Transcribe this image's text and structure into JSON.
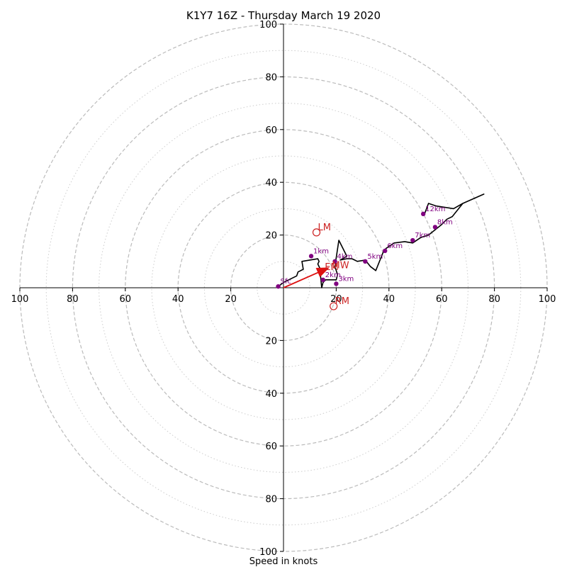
{
  "chart_data": {
    "type": "scatter",
    "title": "K1Y7 16Z - Thursday March 19 2020",
    "xlabel": "Speed in knots",
    "ylabel": "",
    "xlim": [
      -100,
      100
    ],
    "ylim": [
      -100,
      100
    ],
    "grid": true,
    "ticks": {
      "x_left": [
        "100",
        "80",
        "60",
        "40",
        "20"
      ],
      "x_right": [
        "20",
        "40",
        "60",
        "80",
        "100"
      ],
      "y_up": [
        "20",
        "40",
        "60",
        "80",
        "100"
      ],
      "y_down": [
        "20",
        "40",
        "60",
        "80",
        "100"
      ]
    },
    "rings_major": [
      20,
      40,
      60,
      80,
      100
    ],
    "rings_minor": [
      10,
      30,
      50,
      70,
      90
    ],
    "hodograph": {
      "x": [
        -2,
        0,
        2,
        5,
        5.5,
        7.5,
        7,
        13,
        13.5,
        13,
        14,
        14,
        14.5,
        15,
        16,
        20,
        20.5,
        19.5,
        21,
        24,
        21.5,
        24,
        26,
        27,
        28,
        31,
        33,
        35,
        38,
        39,
        42,
        46,
        49,
        52,
        55,
        57.5,
        60,
        62,
        64,
        68,
        76,
        68,
        64.5,
        58,
        55,
        53.5
      ],
      "y": [
        0.5,
        2,
        3,
        4.5,
        6,
        7,
        10,
        11,
        10,
        9,
        7,
        5,
        0,
        2,
        3,
        3,
        5,
        8,
        18,
        12,
        10.5,
        11,
        11,
        10.5,
        10,
        10.5,
        8,
        6.5,
        14,
        15,
        17,
        17.5,
        17,
        19,
        20,
        22,
        24,
        26,
        27,
        32,
        35.5,
        32,
        30,
        31,
        32,
        28
      ]
    },
    "height_markers": [
      {
        "label": "Sfc",
        "x": -2,
        "y": 0.5
      },
      {
        "label": "1km",
        "x": 10.5,
        "y": 12
      },
      {
        "label": "2km",
        "x": 15,
        "y": 3
      },
      {
        "label": "3km",
        "x": 20,
        "y": 1.5
      },
      {
        "label": "4km",
        "x": 19.5,
        "y": 10
      },
      {
        "label": "5km",
        "x": 31,
        "y": 10
      },
      {
        "label": "6km",
        "x": 38.5,
        "y": 14
      },
      {
        "label": "7km",
        "x": 49,
        "y": 18
      },
      {
        "label": "8km",
        "x": 57.5,
        "y": 23
      },
      {
        "label": "12km",
        "x": 53,
        "y": 28
      }
    ],
    "storm_motion": [
      {
        "label": "LM",
        "x": 12.5,
        "y": 21
      },
      {
        "label": "RM",
        "x": 19,
        "y": -7
      }
    ],
    "mean_wind": {
      "label": "MW",
      "x": 19.5,
      "y": 8.5
    },
    "bunkers_vector": {
      "label": "EM",
      "x": 17,
      "y": 7.5
    },
    "colors": {
      "hodograph": "#000000",
      "markers": "#800080",
      "storm": "#cc2222",
      "grid": "#bbbbbb",
      "axes": "#000000"
    }
  }
}
